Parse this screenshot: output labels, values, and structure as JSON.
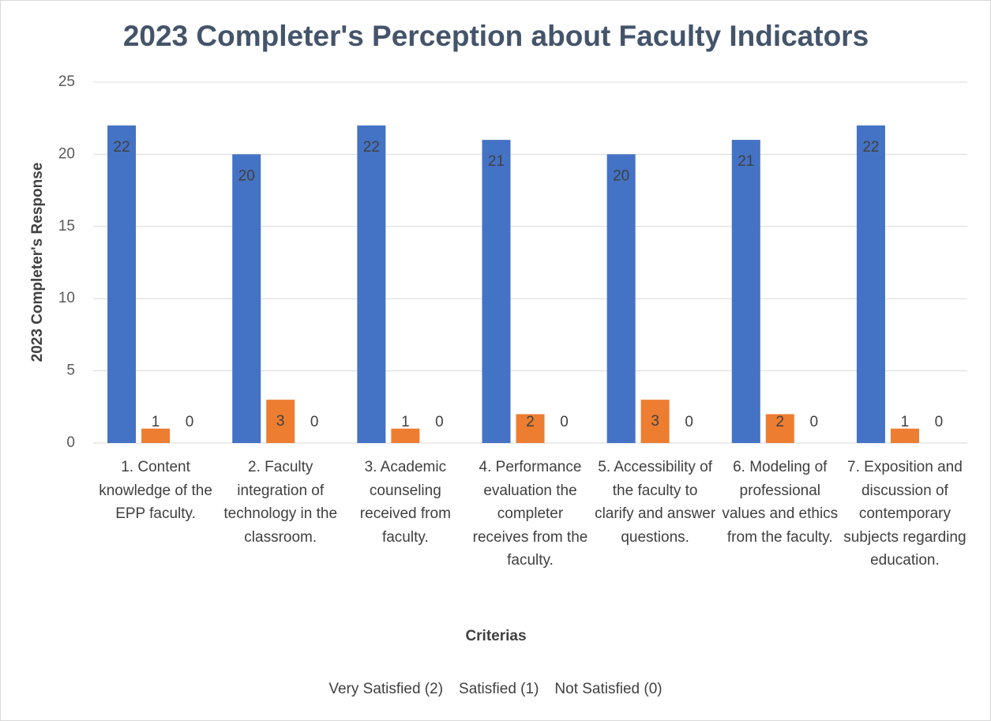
{
  "chart_data": {
    "type": "bar",
    "title": "2023 Completer's Perception about Faculty Indicators",
    "x_label": "Criterias",
    "y_label": "2023 Completer's Response",
    "categories": [
      "1. Content knowledge of the EPP faculty.",
      "2. Faculty integration of technology in the classroom.",
      "3. Academic counseling received from faculty.",
      "4. Performance evaluation the completer receives from the faculty.",
      "5. Accessibility of the faculty to clarify and answer questions.",
      "6. Modeling of professional values and ethics from the faculty.",
      "7. Exposition and discussion of contemporary subjects regarding education."
    ],
    "series": [
      {
        "name": "Very Satisfied (2)",
        "color": "#4472c4",
        "values": [
          22,
          20,
          22,
          21,
          20,
          21,
          22
        ]
      },
      {
        "name": "Satisfied (1)",
        "color": "#ed7d31",
        "values": [
          1,
          3,
          1,
          2,
          3,
          2,
          1
        ]
      },
      {
        "name": "Not Satisfied (0)",
        "color": "#a5a5a5",
        "values": [
          0,
          0,
          0,
          0,
          0,
          0,
          0
        ]
      }
    ],
    "ylim": [
      0,
      25
    ],
    "yticks": [
      0,
      5,
      10,
      15,
      20,
      25
    ],
    "grid": true,
    "legend": "bottom"
  }
}
